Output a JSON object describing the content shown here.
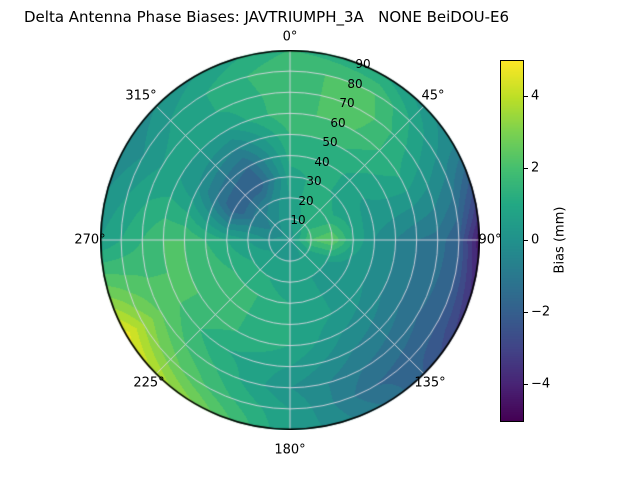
{
  "chart_data": {
    "type": "heatmap",
    "projection": "polar",
    "title": "Delta Antenna Phase Biases: JAVTRIUMPH_3A   NONE BeiDOU-E6",
    "angle_labels": [
      "0°",
      "45°",
      "90°",
      "135°",
      "180°",
      "225°",
      "270°",
      "315°"
    ],
    "radial_tick_labels": [
      "10",
      "20",
      "30",
      "40",
      "50",
      "60",
      "70",
      "80",
      "90"
    ],
    "azimuth_deg": [
      0,
      30,
      60,
      90,
      120,
      150,
      180,
      210,
      240,
      270,
      300,
      330
    ],
    "zenith_deg": [
      0,
      10,
      20,
      30,
      40,
      50,
      60,
      70,
      80,
      90
    ],
    "values_by_azimuth": [
      [
        0.3,
        0.5,
        0.5,
        0.8,
        1.2,
        1.5,
        2.0,
        1.8,
        2.0,
        1.5
      ],
      [
        0.3,
        1.0,
        1.5,
        1.2,
        1.2,
        1.5,
        2.0,
        2.3,
        2.0,
        1.0
      ],
      [
        0.3,
        1.5,
        1.2,
        0.6,
        0.5,
        0.8,
        1.0,
        0.5,
        0.0,
        -0.5
      ],
      [
        0.3,
        2.0,
        2.5,
        1.0,
        0.0,
        -0.5,
        -1.0,
        -1.2,
        -2.0,
        -4.5
      ],
      [
        0.3,
        1.0,
        0.5,
        0.0,
        0.0,
        -0.5,
        -1.0,
        -1.5,
        -2.0,
        -3.0
      ],
      [
        0.3,
        0.5,
        0.5,
        0.5,
        0.5,
        0.0,
        -0.5,
        -1.0,
        -1.5,
        -1.0
      ],
      [
        0.3,
        0.5,
        0.5,
        1.0,
        1.0,
        1.0,
        0.5,
        0.0,
        0.5,
        0.5
      ],
      [
        0.3,
        0.5,
        1.0,
        1.5,
        1.5,
        1.5,
        1.0,
        1.5,
        2.0,
        3.0
      ],
      [
        0.3,
        0.5,
        1.0,
        1.5,
        2.0,
        2.0,
        2.0,
        2.5,
        3.5,
        4.8
      ],
      [
        0.3,
        0.0,
        0.5,
        1.0,
        1.5,
        2.0,
        2.0,
        1.5,
        1.0,
        0.5
      ],
      [
        0.3,
        -0.5,
        -1.0,
        -2.0,
        -1.0,
        0.0,
        0.5,
        0.5,
        0.0,
        -0.5
      ],
      [
        0.3,
        0.0,
        -0.5,
        -2.0,
        -1.5,
        -0.5,
        0.5,
        1.0,
        1.0,
        0.5
      ]
    ],
    "vmin": -5,
    "vmax": 5,
    "contour_step": 0.5,
    "colormap": {
      "name": "viridis",
      "stops": [
        "#440154",
        "#482475",
        "#414487",
        "#355f8d",
        "#2a788e",
        "#21918c",
        "#22a884",
        "#44bf70",
        "#7ad151",
        "#bddf26",
        "#fde725"
      ]
    },
    "grid": {
      "circle_zeniths_deg": [
        10,
        20,
        30,
        40,
        50,
        60,
        70,
        80
      ],
      "spokes_deg": [
        0,
        45,
        90,
        135,
        180,
        225,
        270,
        315
      ],
      "line_color": "#dcd8e3",
      "outline_color": "#000000"
    },
    "colorbar": {
      "label": "Bias (mm)",
      "ticks": [
        {
          "label": "4",
          "value": 4
        },
        {
          "label": "2",
          "value": 2
        },
        {
          "label": "0",
          "value": 0
        },
        {
          "label": "−2",
          "value": -2
        },
        {
          "label": "−4",
          "value": -4
        }
      ]
    }
  }
}
